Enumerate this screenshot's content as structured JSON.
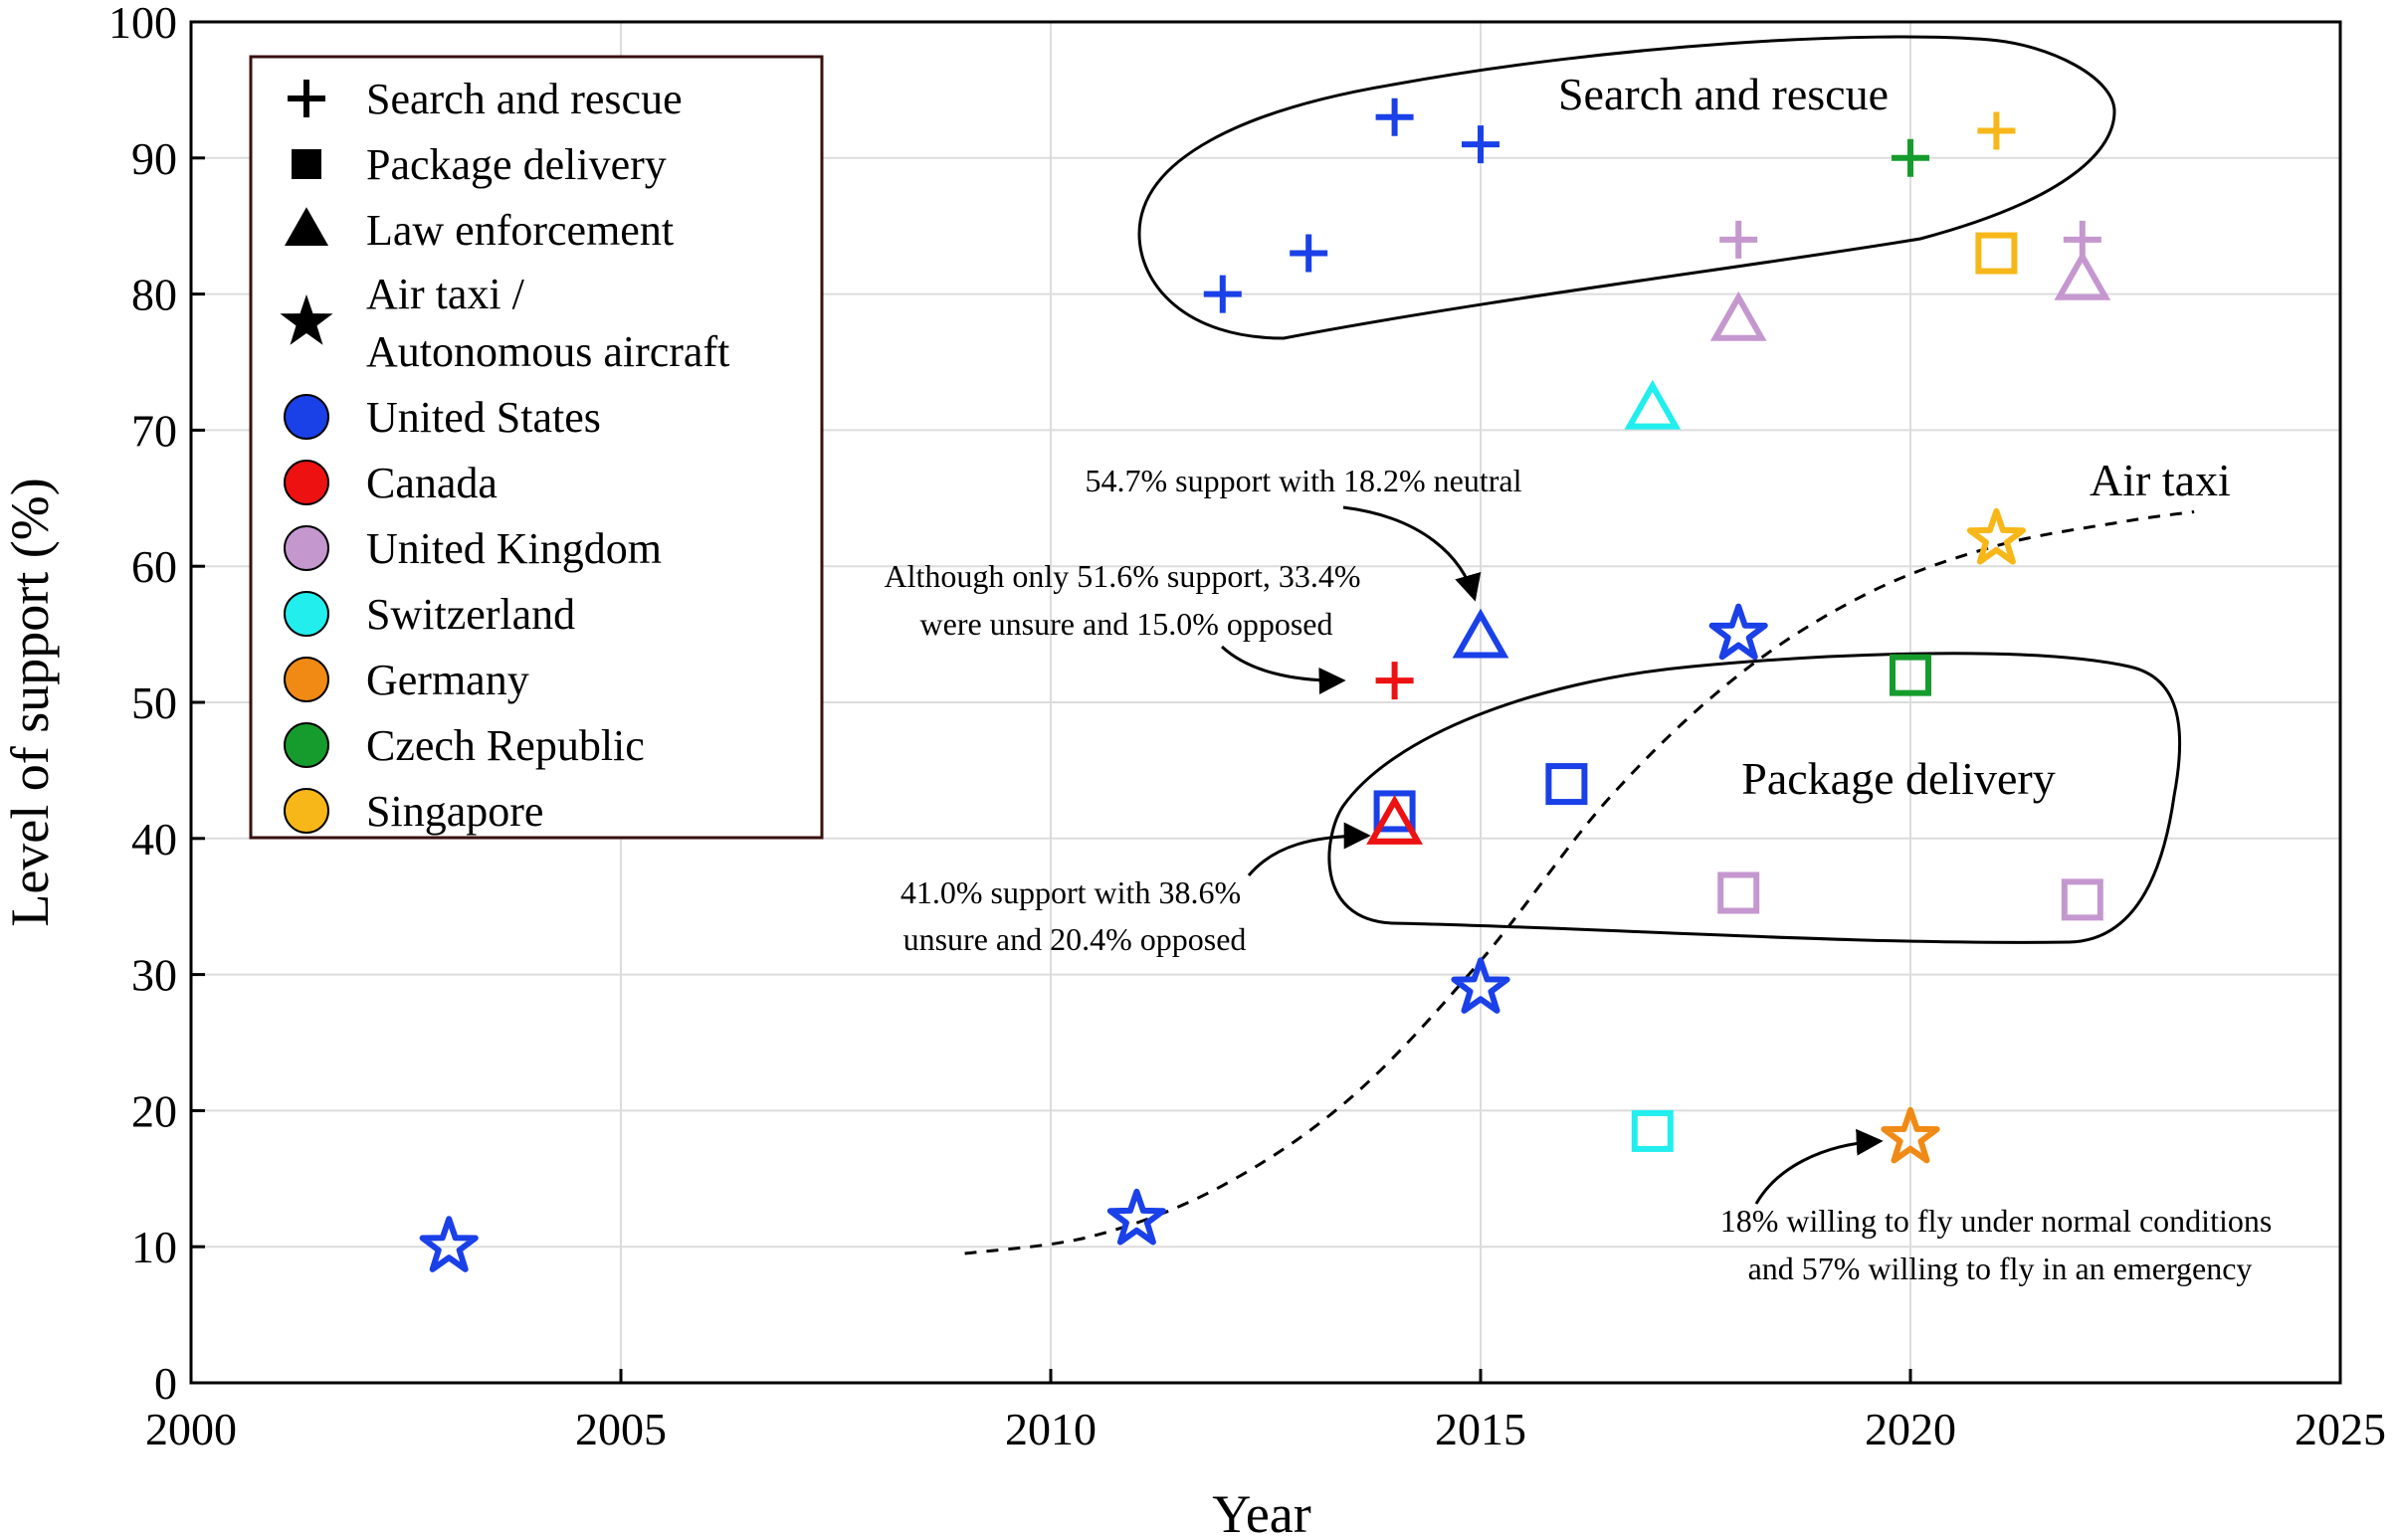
{
  "chart_data": {
    "type": "scatter",
    "title": "",
    "xlabel": "Year",
    "ylabel": "Level of support (%)",
    "xlim": [
      2000,
      2025
    ],
    "ylim": [
      0,
      100
    ],
    "xticks": [
      2000,
      2005,
      2010,
      2015,
      2020,
      2025
    ],
    "yticks": [
      0,
      10,
      20,
      30,
      40,
      50,
      60,
      70,
      80,
      90,
      100
    ],
    "grid": true,
    "legend_position": "top-left",
    "legend": {
      "markers": [
        {
          "marker": "plus",
          "label": "Search and rescue"
        },
        {
          "marker": "square",
          "label": "Package delivery"
        },
        {
          "marker": "triangle",
          "label": "Law enforcement"
        },
        {
          "marker": "star",
          "label": "Air taxi /",
          "label2": "Autonomous aircraft"
        }
      ],
      "countries": [
        {
          "country": "United States",
          "label": "United States",
          "color": "#1a40e8"
        },
        {
          "country": "Canada",
          "label": "Canada",
          "color": "#ee1111"
        },
        {
          "country": "United Kingdom",
          "label": "United Kingdom",
          "color": "#c597cf"
        },
        {
          "country": "Switzerland",
          "label": "Switzerland",
          "color": "#22eeee"
        },
        {
          "country": "Germany",
          "label": "Germany",
          "color": "#f08a14"
        },
        {
          "country": "Czech Republic",
          "label": "Czech Republic",
          "color": "#169c2c"
        },
        {
          "country": "Singapore",
          "label": "Singapore",
          "color": "#f7b718"
        }
      ]
    },
    "points": [
      {
        "marker": "star",
        "country": "United States",
        "x": 2003,
        "y": 10
      },
      {
        "marker": "star",
        "country": "United States",
        "x": 2011,
        "y": 12
      },
      {
        "marker": "star",
        "country": "United States",
        "x": 2015,
        "y": 29
      },
      {
        "marker": "star",
        "country": "United States",
        "x": 2018,
        "y": 55
      },
      {
        "marker": "star",
        "country": "Singapore",
        "x": 2021,
        "y": 62
      },
      {
        "marker": "star",
        "country": "Germany",
        "x": 2020,
        "y": 18
      },
      {
        "marker": "plus",
        "country": "United States",
        "x": 2012,
        "y": 80
      },
      {
        "marker": "plus",
        "country": "United States",
        "x": 2013,
        "y": 83
      },
      {
        "marker": "plus",
        "country": "United States",
        "x": 2014,
        "y": 93
      },
      {
        "marker": "plus",
        "country": "United States",
        "x": 2015,
        "y": 91
      },
      {
        "marker": "plus",
        "country": "Canada",
        "x": 2014,
        "y": 51.6
      },
      {
        "marker": "plus",
        "country": "United Kingdom",
        "x": 2018,
        "y": 84
      },
      {
        "marker": "plus",
        "country": "United Kingdom",
        "x": 2022,
        "y": 84
      },
      {
        "marker": "plus",
        "country": "Czech Republic",
        "x": 2020,
        "y": 90
      },
      {
        "marker": "plus",
        "country": "Singapore",
        "x": 2021,
        "y": 92
      },
      {
        "marker": "square",
        "country": "United States",
        "x": 2014,
        "y": 42
      },
      {
        "marker": "square",
        "country": "United States",
        "x": 2016,
        "y": 44
      },
      {
        "marker": "square",
        "country": "United Kingdom",
        "x": 2018,
        "y": 36
      },
      {
        "marker": "square",
        "country": "United Kingdom",
        "x": 2022,
        "y": 35.5
      },
      {
        "marker": "square",
        "country": "Switzerland",
        "x": 2017,
        "y": 18.5
      },
      {
        "marker": "square",
        "country": "Czech Republic",
        "x": 2020,
        "y": 52
      },
      {
        "marker": "square",
        "country": "Singapore",
        "x": 2021,
        "y": 83
      },
      {
        "marker": "triangle",
        "country": "United States",
        "x": 2015,
        "y": 54.7
      },
      {
        "marker": "triangle",
        "country": "Canada",
        "x": 2014,
        "y": 41
      },
      {
        "marker": "triangle",
        "country": "United Kingdom",
        "x": 2018,
        "y": 78
      },
      {
        "marker": "triangle",
        "country": "United Kingdom",
        "x": 2022,
        "y": 81
      },
      {
        "marker": "triangle",
        "country": "Switzerland",
        "x": 2017,
        "y": 71.5
      }
    ],
    "trend_line": {
      "label": "Air taxi",
      "style": "dashed",
      "points": [
        [
          2009,
          9.5
        ],
        [
          2010.5,
          10.8
        ],
        [
          2012,
          14.5
        ],
        [
          2013.5,
          21
        ],
        [
          2015,
          31
        ],
        [
          2016.5,
          43
        ],
        [
          2018,
          52
        ],
        [
          2019.5,
          58
        ],
        [
          2021,
          61.5
        ],
        [
          2022.5,
          63.3
        ],
        [
          2023.3,
          64
        ]
      ]
    },
    "regions": [
      {
        "label": "Search and rescue"
      },
      {
        "label": "Package delivery"
      }
    ],
    "annotations": [
      {
        "lines": [
          "54.7% support with 18.2% neutral"
        ]
      },
      {
        "lines": [
          "Although only 51.6% support, 33.4%",
          "were unsure and 15.0% opposed"
        ]
      },
      {
        "lines": [
          "41.0% support with 38.6%",
          "unsure and 20.4% opposed"
        ]
      },
      {
        "lines": [
          "18% willing to fly under normal conditions",
          "and 57% willing to fly in an emergency"
        ]
      }
    ]
  }
}
